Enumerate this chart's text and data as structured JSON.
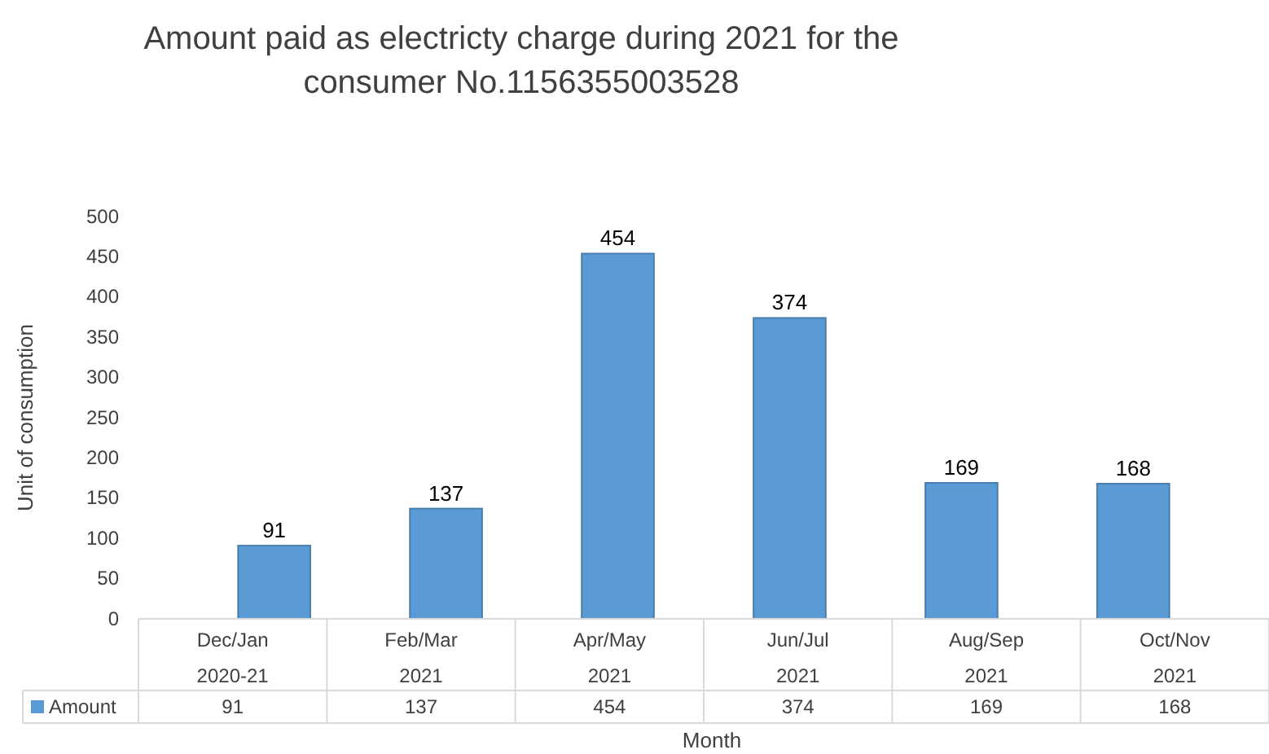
{
  "chart_data": {
    "type": "bar",
    "title": "Amount paid as electricty charge during 2021 for the consumer No.1156355003528",
    "xlabel": "Month",
    "ylabel": "Unit of consumption",
    "categories": [
      "Dec/Jan\n2020-21",
      "Feb/Mar\n2021",
      "Apr/May\n2021",
      "Jun/Jul\n2021",
      "Aug/Sep\n2021",
      "Oct/Nov\n2021"
    ],
    "series": [
      {
        "name": "Amount",
        "color": "#5b9bd5",
        "values": [
          91,
          137,
          454,
          374,
          169,
          168
        ],
        "value_labels": [
          "91",
          "137",
          "454",
          "374",
          "169",
          "168"
        ]
      }
    ],
    "ylim": [
      0,
      500
    ],
    "yticks": [
      0,
      50,
      100,
      150,
      200,
      250,
      300,
      350,
      400,
      450,
      500
    ],
    "annotations": [
      "91",
      "137",
      "454",
      "374",
      "169",
      "168"
    ],
    "legend": "bottom"
  }
}
